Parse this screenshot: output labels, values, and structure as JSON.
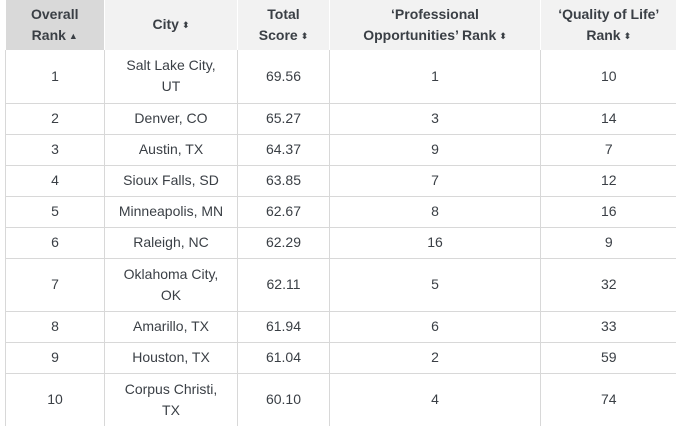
{
  "table": {
    "headers": [
      {
        "line1": "Overall",
        "line2": "Rank",
        "sort_icon": "▲",
        "sort_icon_name": "sort-ascending-icon"
      },
      {
        "line1": "City",
        "line2": "",
        "sort_icon": "⬍",
        "sort_icon_name": "sort-both-icon"
      },
      {
        "line1": "Total",
        "line2": "Score",
        "sort_icon": "⬍",
        "sort_icon_name": "sort-both-icon"
      },
      {
        "line1": "‘Professional",
        "line2": "Opportunities’ Rank",
        "sort_icon": "⬍",
        "sort_icon_name": "sort-both-icon"
      },
      {
        "line1": "‘Quality of Life’",
        "line2": "Rank",
        "sort_icon": "⬍",
        "sort_icon_name": "sort-both-icon"
      }
    ],
    "rows": [
      {
        "rank": "1",
        "city_line1": "Salt Lake City,",
        "city_line2": "UT",
        "score": "69.56",
        "prof_rank": "1",
        "qol_rank": "10"
      },
      {
        "rank": "2",
        "city_line1": "Denver, CO",
        "city_line2": "",
        "score": "65.27",
        "prof_rank": "3",
        "qol_rank": "14"
      },
      {
        "rank": "3",
        "city_line1": "Austin, TX",
        "city_line2": "",
        "score": "64.37",
        "prof_rank": "9",
        "qol_rank": "7"
      },
      {
        "rank": "4",
        "city_line1": "Sioux Falls, SD",
        "city_line2": "",
        "score": "63.85",
        "prof_rank": "7",
        "qol_rank": "12"
      },
      {
        "rank": "5",
        "city_line1": "Minneapolis, MN",
        "city_line2": "",
        "score": "62.67",
        "prof_rank": "8",
        "qol_rank": "16"
      },
      {
        "rank": "6",
        "city_line1": "Raleigh, NC",
        "city_line2": "",
        "score": "62.29",
        "prof_rank": "16",
        "qol_rank": "9"
      },
      {
        "rank": "7",
        "city_line1": "Oklahoma City,",
        "city_line2": "OK",
        "score": "62.11",
        "prof_rank": "5",
        "qol_rank": "32"
      },
      {
        "rank": "8",
        "city_line1": "Amarillo, TX",
        "city_line2": "",
        "score": "61.94",
        "prof_rank": "6",
        "qol_rank": "33"
      },
      {
        "rank": "9",
        "city_line1": "Houston, TX",
        "city_line2": "",
        "score": "61.04",
        "prof_rank": "2",
        "qol_rank": "59"
      },
      {
        "rank": "10",
        "city_line1": "Corpus Christi,",
        "city_line2": "TX",
        "score": "60.10",
        "prof_rank": "4",
        "qol_rank": "74"
      }
    ]
  }
}
